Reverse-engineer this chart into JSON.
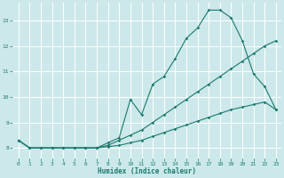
{
  "xlabel": "Humidex (Indice chaleur)",
  "xlim": [
    -0.5,
    23.5
  ],
  "ylim": [
    7.6,
    13.7
  ],
  "yticks": [
    8,
    9,
    10,
    11,
    12,
    13
  ],
  "xticks": [
    0,
    1,
    2,
    3,
    4,
    5,
    6,
    7,
    8,
    9,
    10,
    11,
    12,
    13,
    14,
    15,
    16,
    17,
    18,
    19,
    20,
    21,
    22,
    23
  ],
  "bg_color": "#cce8ea",
  "line_color": "#1a7a6e",
  "grid_color": "#ffffff",
  "line1_x": [
    0,
    1,
    2,
    3,
    4,
    5,
    6,
    7,
    8,
    9,
    10,
    11,
    12,
    13,
    14,
    15,
    16,
    17,
    18,
    19,
    20,
    21,
    22,
    23
  ],
  "line1_y": [
    8.3,
    8.0,
    8.0,
    8.0,
    8.0,
    8.0,
    8.0,
    8.0,
    8.05,
    8.1,
    8.2,
    8.3,
    8.45,
    8.6,
    8.75,
    8.9,
    9.05,
    9.2,
    9.35,
    9.5,
    9.6,
    9.7,
    9.8,
    9.5
  ],
  "line2_x": [
    0,
    1,
    2,
    3,
    4,
    5,
    6,
    7,
    8,
    9,
    10,
    11,
    12,
    13,
    14,
    15,
    16,
    17,
    18,
    19,
    20,
    21,
    22,
    23
  ],
  "line2_y": [
    8.3,
    8.0,
    8.0,
    8.0,
    8.0,
    8.0,
    8.0,
    8.0,
    8.1,
    8.3,
    8.5,
    8.7,
    9.0,
    9.3,
    9.6,
    9.9,
    10.2,
    10.5,
    10.8,
    11.1,
    11.4,
    11.7,
    12.0,
    12.2
  ],
  "line3_x": [
    0,
    1,
    2,
    3,
    4,
    5,
    6,
    7,
    8,
    9,
    10,
    11,
    12,
    13,
    14,
    15,
    16,
    17,
    18,
    19,
    20,
    21,
    22,
    23
  ],
  "line3_y": [
    8.3,
    8.0,
    8.0,
    8.0,
    8.0,
    8.0,
    8.0,
    8.0,
    8.2,
    8.4,
    9.9,
    9.3,
    10.5,
    10.8,
    11.5,
    12.3,
    12.7,
    13.4,
    13.4,
    13.1,
    12.2,
    10.9,
    10.4,
    9.5
  ]
}
